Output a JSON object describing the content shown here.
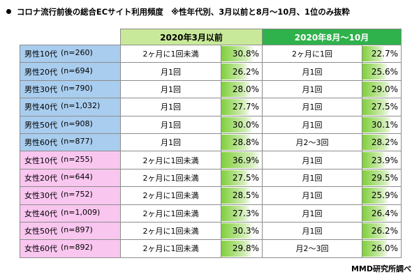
{
  "title": "コロナ流行前後の総合ECサイト利用頻度　※性年代別、3月以前と8月～10月、1位のみ抜粋",
  "source": "MMD研究所調べ",
  "colors": {
    "period1_header": "#c9e99a",
    "period2_header": "#2fb24b",
    "male": "#a9cdee",
    "female": "#f9c6ef",
    "bar": "#7fcf3a"
  },
  "chart_data": {
    "type": "table",
    "periods": [
      "2020年3月以前",
      "2020年8月～10月"
    ],
    "rows": [
      {
        "group": "男性10代",
        "n": "(n=260)",
        "freq1": "2ヶ月に1回未満",
        "pct1": 30.8,
        "pct1_text": "30.8%",
        "freq2": "2ヶ月に1回",
        "pct2": 22.7,
        "pct2_text": "22.7%",
        "gender": "male"
      },
      {
        "group": "男性20代",
        "n": "(n=694)",
        "freq1": "月1回",
        "pct1": 26.2,
        "pct1_text": "26.2%",
        "freq2": "月1回",
        "pct2": 25.6,
        "pct2_text": "25.6%",
        "gender": "male"
      },
      {
        "group": "男性30代",
        "n": "(n=790)",
        "freq1": "月1回",
        "pct1": 28.0,
        "pct1_text": "28.0%",
        "freq2": "月1回",
        "pct2": 29.0,
        "pct2_text": "29.0%",
        "gender": "male"
      },
      {
        "group": "男性40代",
        "n": "(n=1,032)",
        "freq1": "月1回",
        "pct1": 27.7,
        "pct1_text": "27.7%",
        "freq2": "月1回",
        "pct2": 27.5,
        "pct2_text": "27.5%",
        "gender": "male"
      },
      {
        "group": "男性50代",
        "n": "(n=908)",
        "freq1": "月1回",
        "pct1": 30.0,
        "pct1_text": "30.0%",
        "freq2": "月1回",
        "pct2": 30.1,
        "pct2_text": "30.1%",
        "gender": "male"
      },
      {
        "group": "男性60代",
        "n": "(n=877)",
        "freq1": "月1回",
        "pct1": 28.8,
        "pct1_text": "28.8%",
        "freq2": "月2～3回",
        "pct2": 28.2,
        "pct2_text": "28.2%",
        "gender": "male"
      },
      {
        "group": "女性10代",
        "n": "(n=255)",
        "freq1": "2ヶ月に1回未満",
        "pct1": 36.9,
        "pct1_text": "36.9%",
        "freq2": "月1回",
        "pct2": 23.9,
        "pct2_text": "23.9%",
        "gender": "female"
      },
      {
        "group": "女性20代",
        "n": "(n=644)",
        "freq1": "2ヶ月に1回未満",
        "pct1": 27.5,
        "pct1_text": "27.5%",
        "freq2": "月1回",
        "pct2": 29.5,
        "pct2_text": "29.5%",
        "gender": "female"
      },
      {
        "group": "女性30代",
        "n": "(n=752)",
        "freq1": "2ヶ月に1回未満",
        "pct1": 28.5,
        "pct1_text": "28.5%",
        "freq2": "月1回",
        "pct2": 25.9,
        "pct2_text": "25.9%",
        "gender": "female"
      },
      {
        "group": "女性40代",
        "n": "(n=1,009)",
        "freq1": "2ヶ月に1回未満",
        "pct1": 27.3,
        "pct1_text": "27.3%",
        "freq2": "月1回",
        "pct2": 26.4,
        "pct2_text": "26.4%",
        "gender": "female"
      },
      {
        "group": "女性50代",
        "n": "(n=897)",
        "freq1": "2ヶ月に1回未満",
        "pct1": 30.3,
        "pct1_text": "30.3%",
        "freq2": "月1回",
        "pct2": 26.2,
        "pct2_text": "26.2%",
        "gender": "female"
      },
      {
        "group": "女性60代",
        "n": "(n=892)",
        "freq1": "2ヶ月に1回未満",
        "pct1": 29.8,
        "pct1_text": "29.8%",
        "freq2": "月2～3回",
        "pct2": 26.0,
        "pct2_text": "26.0%",
        "gender": "female"
      }
    ]
  }
}
